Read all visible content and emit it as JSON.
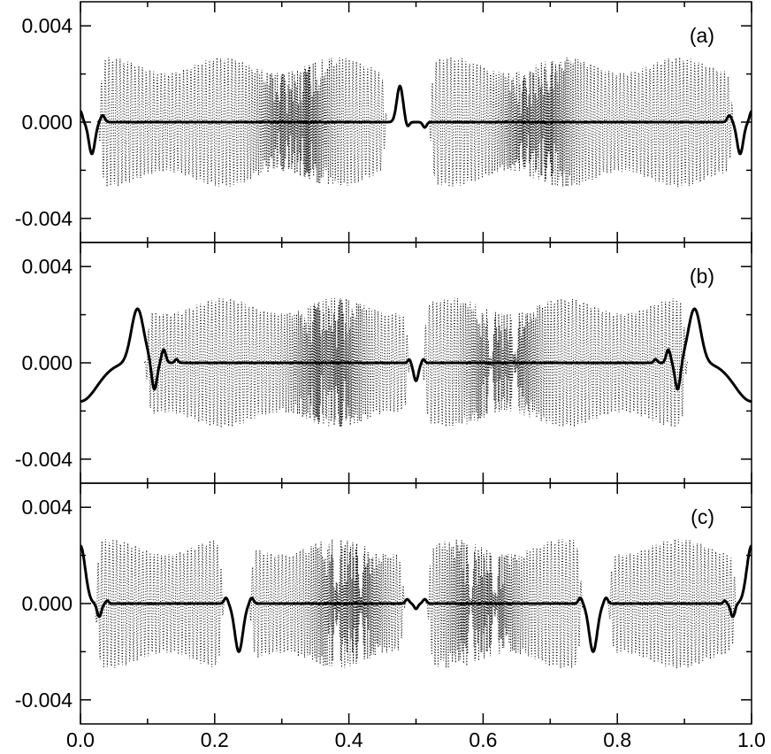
{
  "chart_data": [
    {
      "panel": "(a)",
      "type": "line",
      "xlim": [
        0.0,
        1.0
      ],
      "ylim": [
        -0.005,
        0.005
      ],
      "yticks": [
        -0.004,
        0.0,
        0.004
      ],
      "ytick_labels": [
        "-0.004",
        "0.000",
        "0.004"
      ],
      "xticks": [
        0.0,
        0.2,
        0.4,
        0.6,
        0.8,
        1.0
      ],
      "xtick_labels": [],
      "grid": false,
      "series": [
        {
          "style": "solid",
          "peaks": [
            {
              "x": 0.017,
              "amp": -0.00132,
              "w": 0.0065
            },
            {
              "x": 0.033,
              "amp": 0.00028,
              "w": 0.0045
            },
            {
              "x": 0.476,
              "amp": 0.0015,
              "w": 0.0065
            },
            {
              "x": 0.487,
              "amp": -0.00022,
              "w": 0.004
            },
            {
              "x": 0.513,
              "amp": -0.00022,
              "w": 0.004
            },
            {
              "x": 0.967,
              "amp": 0.00028,
              "w": 0.0045
            },
            {
              "x": 0.983,
              "amp": -0.00132,
              "w": 0.0065
            },
            {
              "x": 0.0,
              "amp": 0.00045,
              "w": 0.004
            },
            {
              "x": 1.0,
              "amp": 0.00045,
              "w": 0.004
            }
          ]
        },
        {
          "style": "dotted",
          "amplitude": 0.0027,
          "segments": [
            [
              0.025,
              0.458
            ],
            [
              0.518,
              0.975
            ]
          ],
          "dense_x": [
            0.32,
            0.68
          ]
        }
      ]
    },
    {
      "panel": "(b)",
      "type": "line",
      "xlim": [
        0.0,
        1.0
      ],
      "ylim": [
        -0.005,
        0.005
      ],
      "yticks": [
        -0.004,
        0.0,
        0.004
      ],
      "ytick_labels": [
        "-0.004",
        "0.000",
        "0.004"
      ],
      "xticks": [
        0.0,
        0.2,
        0.4,
        0.6,
        0.8,
        1.0
      ],
      "xtick_labels": [],
      "grid": false,
      "series": [
        {
          "style": "solid",
          "baseline_edges": -0.0016,
          "peaks": [
            {
              "x": 0.085,
              "amp": 0.00225,
              "w": 0.013
            },
            {
              "x": 0.11,
              "amp": -0.00115,
              "w": 0.0055
            },
            {
              "x": 0.124,
              "amp": 0.00055,
              "w": 0.0045
            },
            {
              "x": 0.143,
              "amp": 0.00015,
              "w": 0.0035
            },
            {
              "x": 0.49,
              "amp": 0.00015,
              "w": 0.003
            },
            {
              "x": 0.5,
              "amp": -0.00075,
              "w": 0.005
            },
            {
              "x": 0.511,
              "amp": 0.00015,
              "w": 0.003
            },
            {
              "x": 0.857,
              "amp": 0.00015,
              "w": 0.0035
            },
            {
              "x": 0.876,
              "amp": 0.00055,
              "w": 0.0045
            },
            {
              "x": 0.89,
              "amp": -0.00115,
              "w": 0.0055
            },
            {
              "x": 0.915,
              "amp": 0.00225,
              "w": 0.013
            }
          ]
        },
        {
          "style": "dotted",
          "amplitude": 0.0027,
          "segments": [
            [
              0.095,
              0.492
            ],
            [
              0.508,
              0.905
            ]
          ],
          "dense_x": [
            0.37,
            0.63
          ]
        }
      ]
    },
    {
      "panel": "(c)",
      "type": "line",
      "xlim": [
        0.0,
        1.0
      ],
      "ylim": [
        -0.005,
        0.005
      ],
      "yticks": [
        -0.004,
        0.0,
        0.004
      ],
      "ytick_labels": [
        "-0.004",
        "0.000",
        "0.004"
      ],
      "xticks": [
        0.0,
        0.2,
        0.4,
        0.6,
        0.8,
        1.0
      ],
      "xtick_labels": [
        "0.0",
        "0.2",
        "0.4",
        "0.6",
        "0.8",
        "1.0"
      ],
      "grid": false,
      "series": [
        {
          "style": "solid",
          "peaks": [
            {
              "x": 0.0,
              "amp": 0.0024,
              "w": 0.01
            },
            {
              "x": 0.028,
              "amp": -0.00055,
              "w": 0.0045
            },
            {
              "x": 0.04,
              "amp": 0.00012,
              "w": 0.003
            },
            {
              "x": 0.217,
              "amp": 0.00025,
              "w": 0.004
            },
            {
              "x": 0.236,
              "amp": -0.002,
              "w": 0.0085
            },
            {
              "x": 0.255,
              "amp": 0.00025,
              "w": 0.004
            },
            {
              "x": 0.487,
              "amp": 0.00018,
              "w": 0.004
            },
            {
              "x": 0.5,
              "amp": -0.00022,
              "w": 0.004
            },
            {
              "x": 0.513,
              "amp": 0.00018,
              "w": 0.004
            },
            {
              "x": 0.745,
              "amp": 0.00025,
              "w": 0.004
            },
            {
              "x": 0.764,
              "amp": -0.002,
              "w": 0.0085
            },
            {
              "x": 0.783,
              "amp": 0.00025,
              "w": 0.004
            },
            {
              "x": 0.96,
              "amp": 0.00012,
              "w": 0.003
            },
            {
              "x": 0.972,
              "amp": -0.00055,
              "w": 0.0045
            },
            {
              "x": 1.0,
              "amp": 0.0024,
              "w": 0.01
            }
          ]
        },
        {
          "style": "dotted",
          "amplitude": 0.0027,
          "segments": [
            [
              0.02,
              0.215
            ],
            [
              0.25,
              0.485
            ],
            [
              0.515,
              0.75
            ],
            [
              0.785,
              0.98
            ]
          ],
          "dense_x": [
            0.4,
            0.6
          ]
        }
      ]
    }
  ],
  "panel_labels": [
    "(a)",
    "(b)",
    "(c)"
  ],
  "colors": {
    "line": "#000000",
    "background": "#ffffff"
  }
}
